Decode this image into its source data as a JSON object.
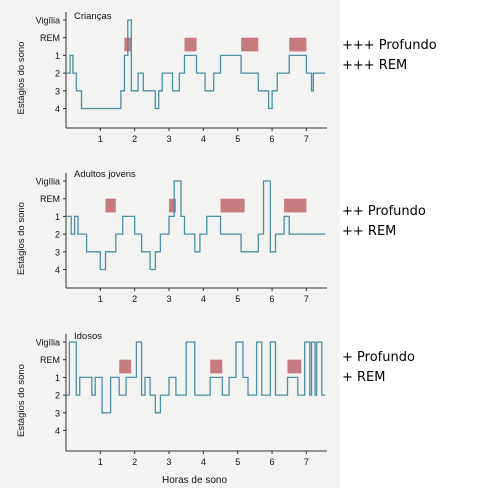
{
  "chart_data": [
    {
      "type": "line",
      "title": "Crianças",
      "ylabel": "Estágios do sono",
      "xlabel": "",
      "y_categories": [
        "Vigília",
        "REM",
        "1",
        "2",
        "3",
        "4"
      ],
      "xlim": [
        0,
        7.6
      ],
      "x_ticks": [
        1,
        2,
        3,
        4,
        5,
        6,
        7
      ],
      "line_color": "#4e8fa4",
      "rem_color": "#c77a80",
      "x": [
        0,
        0.12,
        0.12,
        0.2,
        0.2,
        0.3,
        0.3,
        0.45,
        0.45,
        1.6,
        1.6,
        1.7,
        1.7,
        1.8,
        1.8,
        1.9,
        1.9,
        2.1,
        2.1,
        2.25,
        2.25,
        2.6,
        2.6,
        2.7,
        2.7,
        2.8,
        2.8,
        3.1,
        3.1,
        3.3,
        3.3,
        3.45,
        3.45,
        3.8,
        3.8,
        4.05,
        4.05,
        4.3,
        4.3,
        4.5,
        4.5,
        5.1,
        5.1,
        5.6,
        5.6,
        5.9,
        5.9,
        6.0,
        6.0,
        6.15,
        6.15,
        6.5,
        6.5,
        7.0,
        7.0,
        7.15,
        7.15,
        7.2,
        7.2,
        7.25,
        7.25,
        7.55
      ],
      "stages": [
        3,
        3,
        2,
        2,
        3,
        3,
        4,
        4,
        5,
        5,
        4,
        4,
        2,
        2,
        0,
        0,
        4,
        4,
        3,
        3,
        4,
        4,
        5,
        5,
        4,
        4,
        3,
        3,
        4,
        4,
        3,
        3,
        2,
        2,
        3,
        3,
        4,
        4,
        3,
        3,
        2,
        2,
        3,
        3,
        4,
        4,
        5,
        5,
        4,
        4,
        3,
        3,
        2,
        2,
        3,
        3,
        4,
        4,
        3,
        3,
        3,
        3
      ],
      "rem_periods": [
        [
          1.7,
          1.9
        ],
        [
          3.45,
          3.8
        ],
        [
          5.1,
          5.6
        ],
        [
          6.5,
          7.0
        ]
      ],
      "note_lines": [
        "+++ Profundo",
        "+++ REM"
      ]
    },
    {
      "type": "line",
      "title": "Adultos jovens",
      "ylabel": "Estágios do sono",
      "xlabel": "",
      "y_categories": [
        "Vigília",
        "REM",
        "1",
        "2",
        "3",
        "4"
      ],
      "xlim": [
        0,
        7.6
      ],
      "x_ticks": [
        1,
        2,
        3,
        4,
        5,
        6,
        7
      ],
      "line_color": "#4e8fa4",
      "rem_color": "#c77a80",
      "x": [
        0,
        0.15,
        0.15,
        0.25,
        0.25,
        0.35,
        0.35,
        0.6,
        0.6,
        1.0,
        1.0,
        1.15,
        1.15,
        1.45,
        1.45,
        1.65,
        1.65,
        2.0,
        2.0,
        2.2,
        2.2,
        2.45,
        2.45,
        2.6,
        2.6,
        2.75,
        2.75,
        3.0,
        3.0,
        3.15,
        3.15,
        3.35,
        3.35,
        3.45,
        3.45,
        3.75,
        3.75,
        3.9,
        3.9,
        4.1,
        4.1,
        4.5,
        4.5,
        5.1,
        5.1,
        5.6,
        5.6,
        5.75,
        5.75,
        5.95,
        5.95,
        6.1,
        6.1,
        6.35,
        6.35,
        6.5,
        6.5,
        7.0,
        7.0,
        7.25,
        7.25,
        7.55
      ],
      "stages": [
        2,
        2,
        3,
        3,
        2,
        2,
        3,
        3,
        4,
        4,
        5,
        5,
        4,
        4,
        3,
        3,
        2,
        2,
        3,
        3,
        4,
        4,
        5,
        5,
        4,
        4,
        3,
        3,
        2,
        2,
        0,
        0,
        2,
        2,
        3,
        3,
        4,
        4,
        3,
        3,
        2,
        2,
        3,
        3,
        4,
        4,
        3,
        3,
        0,
        0,
        4,
        4,
        3,
        3,
        2,
        2,
        3,
        3,
        3,
        3,
        3,
        3
      ],
      "rem_periods": [
        [
          1.15,
          1.45
        ],
        [
          3.0,
          3.2
        ],
        [
          4.5,
          5.2
        ],
        [
          6.35,
          7.0
        ]
      ],
      "note_lines": [
        "++ Profundo",
        "++ REM"
      ]
    },
    {
      "type": "line",
      "title": "Idosos",
      "ylabel": "Estágios do sono",
      "xlabel": "Horas de sono",
      "y_categories": [
        "Vigília",
        "REM",
        "1",
        "2",
        "3",
        "4"
      ],
      "xlim": [
        0,
        7.6
      ],
      "x_ticks": [
        1,
        2,
        3,
        4,
        5,
        6,
        7
      ],
      "line_color": "#4e8fa4",
      "rem_color": "#c77a80",
      "x": [
        0,
        0.1,
        0.1,
        0.3,
        0.3,
        0.4,
        0.4,
        0.75,
        0.75,
        0.85,
        0.85,
        1.05,
        1.05,
        1.3,
        1.3,
        1.55,
        1.55,
        1.75,
        1.75,
        2.05,
        2.05,
        2.2,
        2.2,
        2.3,
        2.3,
        2.45,
        2.45,
        2.6,
        2.6,
        2.75,
        2.75,
        3.0,
        3.0,
        3.2,
        3.2,
        3.5,
        3.5,
        3.75,
        3.75,
        4.2,
        4.2,
        4.55,
        4.55,
        4.75,
        4.75,
        4.95,
        4.95,
        5.15,
        5.15,
        5.3,
        5.3,
        5.55,
        5.55,
        5.7,
        5.7,
        5.95,
        5.95,
        6.1,
        6.1,
        6.45,
        6.45,
        6.75,
        6.75,
        6.95,
        6.95,
        7.1,
        7.1,
        7.15,
        7.15,
        7.25,
        7.25,
        7.3,
        7.3,
        7.45,
        7.45,
        7.55
      ],
      "stages": [
        3,
        3,
        0,
        0,
        3,
        3,
        2,
        2,
        3,
        3,
        2,
        2,
        4,
        4,
        2,
        2,
        3,
        3,
        2,
        2,
        0,
        0,
        3,
        3,
        2,
        2,
        3,
        3,
        4,
        4,
        3,
        3,
        2,
        2,
        3,
        3,
        0,
        0,
        3,
        3,
        2,
        2,
        3,
        3,
        2,
        2,
        0,
        0,
        2,
        2,
        3,
        3,
        0,
        0,
        3,
        3,
        0,
        0,
        3,
        3,
        2,
        2,
        3,
        3,
        0,
        0,
        3,
        3,
        0,
        0,
        3,
        3,
        0,
        0,
        3,
        3
      ],
      "rem_periods": [
        [
          1.55,
          1.9
        ],
        [
          4.2,
          4.55
        ],
        [
          6.45,
          6.85
        ]
      ],
      "note_lines": [
        "+ Profundo",
        "+ REM"
      ]
    }
  ]
}
